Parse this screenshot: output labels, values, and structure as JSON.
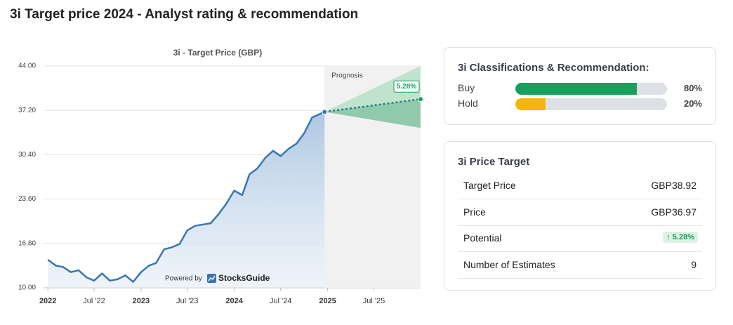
{
  "header": {
    "title": "3i Target price 2024 - Analyst rating & recommendation"
  },
  "chart_data": {
    "type": "line",
    "title": "3i - Target Price (GBP)",
    "color": "#3a76b0",
    "x": [
      "2022-01-01",
      "2022-02-01",
      "2022-03-01",
      "2022-04-01",
      "2022-05-01",
      "2022-06-01",
      "2022-07-01",
      "2022-08-01",
      "2022-09-01",
      "2022-10-01",
      "2022-11-01",
      "2022-12-01",
      "2023-01-01",
      "2023-02-01",
      "2023-03-01",
      "2023-04-01",
      "2023-05-01",
      "2023-06-01",
      "2023-07-01",
      "2023-08-01",
      "2023-09-01",
      "2023-10-01",
      "2023-11-01",
      "2023-12-01",
      "2024-01-01",
      "2024-02-01",
      "2024-03-01",
      "2024-04-01",
      "2024-05-01",
      "2024-06-01",
      "2024-07-01",
      "2024-08-01",
      "2024-09-01",
      "2024-10-01",
      "2024-11-01",
      "2024-12-20"
    ],
    "values": [
      14.3,
      13.4,
      13.2,
      12.4,
      12.7,
      11.6,
      11.1,
      12.2,
      11.1,
      11.3,
      11.9,
      10.9,
      12.4,
      13.4,
      13.8,
      15.9,
      16.2,
      16.7,
      18.8,
      19.5,
      19.7,
      19.9,
      21.3,
      22.9,
      24.9,
      24.2,
      27.4,
      28.3,
      29.9,
      31.0,
      30.2,
      31.3,
      32.1,
      33.7,
      36.1,
      36.97
    ],
    "xlim": [
      "2021-12-15",
      "2025-12-31"
    ],
    "xticks": [
      {
        "value": "2022-01-01",
        "label": "2022"
      },
      {
        "value": "2022-07-01",
        "label": "Jul '22"
      },
      {
        "value": "2023-01-01",
        "label": "2023"
      },
      {
        "value": "2023-07-01",
        "label": "Jul '23"
      },
      {
        "value": "2024-01-01",
        "label": "2024"
      },
      {
        "value": "2024-07-01",
        "label": "Jul '24"
      },
      {
        "value": "2025-01-01",
        "label": "2025"
      },
      {
        "value": "2025-07-01",
        "label": "Jul '25"
      }
    ],
    "ylim": [
      10,
      44
    ],
    "yticks": [
      {
        "value": 10,
        "label": "10.00"
      },
      {
        "value": 16.8,
        "label": "16.80"
      },
      {
        "value": 23.6,
        "label": "23.60"
      },
      {
        "value": 30.4,
        "label": "30.40"
      },
      {
        "value": 37.2,
        "label": "37.20"
      },
      {
        "value": 44,
        "label": "44.00"
      }
    ],
    "grid": true,
    "forecast": {
      "label": "Prognosis",
      "end": "2025-12-31",
      "target": 38.92,
      "high": 44,
      "low": 34.5,
      "change_label": "5.28%"
    },
    "credit": {
      "prefix": "Powered by",
      "brand": "StocksGuide"
    }
  },
  "classifications": {
    "title": "3i Classifications & Recommendation:",
    "rows": [
      {
        "label": "Buy",
        "value": 80,
        "value_label": "80%",
        "color": "#17a05a"
      },
      {
        "label": "Hold",
        "value": 20,
        "value_label": "20%",
        "color": "#f3b60b"
      }
    ]
  },
  "price_target": {
    "title": "3i Price Target",
    "rows": [
      [
        "Target Price",
        "GBP38.92"
      ],
      [
        "Price",
        "GBP36.97"
      ],
      [
        "Potential",
        "5.28%"
      ],
      [
        "Number of Estimates",
        "9"
      ]
    ]
  }
}
